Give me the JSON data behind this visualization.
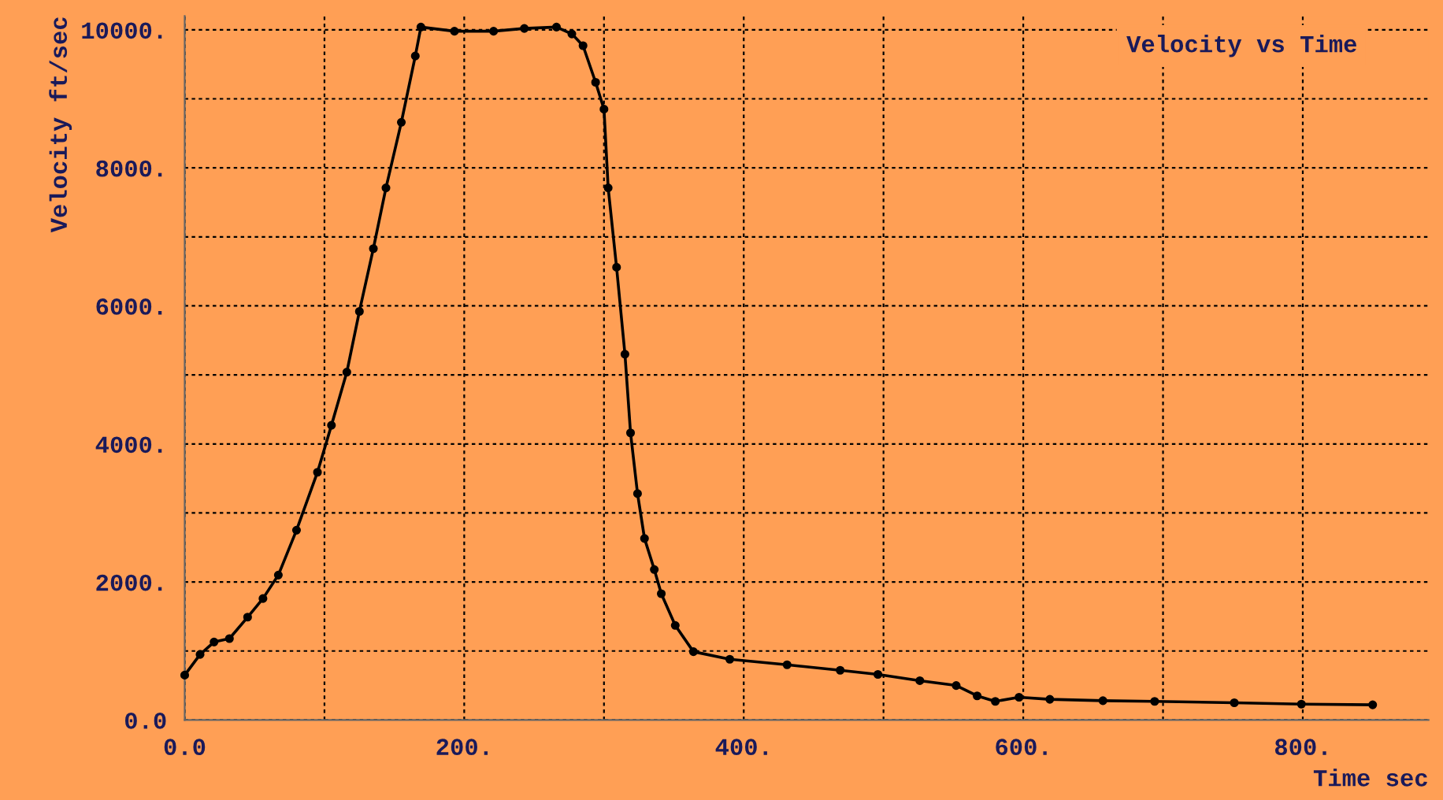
{
  "chart_data": {
    "type": "line",
    "title": "Velocity vs Time",
    "xlabel": "Time sec",
    "ylabel": "Velocity ft/sec",
    "x": [
      0,
      11,
      21,
      32,
      45,
      56,
      67,
      80,
      95,
      105,
      116,
      125,
      135,
      144,
      155,
      165,
      169,
      193,
      221,
      243,
      266,
      277,
      285,
      294,
      300,
      303,
      309,
      315,
      319,
      324,
      329,
      336,
      341,
      351,
      364,
      390,
      431,
      469,
      496,
      526,
      552,
      567,
      580,
      597,
      619,
      657,
      694,
      751,
      799,
      850
    ],
    "series": [
      {
        "color": "#000000",
        "values": [
          650,
          950,
          1130,
          1180,
          1490,
          1760,
          2100,
          2750,
          3590,
          4270,
          5040,
          5920,
          6830,
          7710,
          8660,
          9620,
          10040,
          9980,
          9980,
          10020,
          10040,
          9940,
          9770,
          9240,
          8850,
          7710,
          6560,
          5300,
          4160,
          3280,
          2630,
          2180,
          1830,
          1370,
          990,
          880,
          800,
          720,
          660,
          570,
          500,
          350,
          270,
          330,
          300,
          280,
          270,
          250,
          230,
          220
        ]
      }
    ],
    "xlim": [
      0,
      890
    ],
    "ylim": [
      0,
      10200
    ],
    "xticks": [
      {
        "value": 0,
        "label": "0.0"
      },
      {
        "value": 100,
        "label": null
      },
      {
        "value": 200,
        "label": "200."
      },
      {
        "value": 300,
        "label": null
      },
      {
        "value": 400,
        "label": "400."
      },
      {
        "value": 500,
        "label": null
      },
      {
        "value": 600,
        "label": "600."
      },
      {
        "value": 700,
        "label": null
      },
      {
        "value": 800,
        "label": "800."
      }
    ],
    "yticks": [
      {
        "value": 0,
        "label": "0.0"
      },
      {
        "value": 1000,
        "label": null
      },
      {
        "value": 2000,
        "label": "2000."
      },
      {
        "value": 3000,
        "label": null
      },
      {
        "value": 4000,
        "label": "4000."
      },
      {
        "value": 5000,
        "label": null
      },
      {
        "value": 6000,
        "label": "6000."
      },
      {
        "value": 7000,
        "label": null
      },
      {
        "value": 8000,
        "label": "8000."
      },
      {
        "value": 9000,
        "label": null
      },
      {
        "value": 10000,
        "label": "10000."
      }
    ],
    "grid": true,
    "marker": "circle",
    "line_style": "solid"
  }
}
